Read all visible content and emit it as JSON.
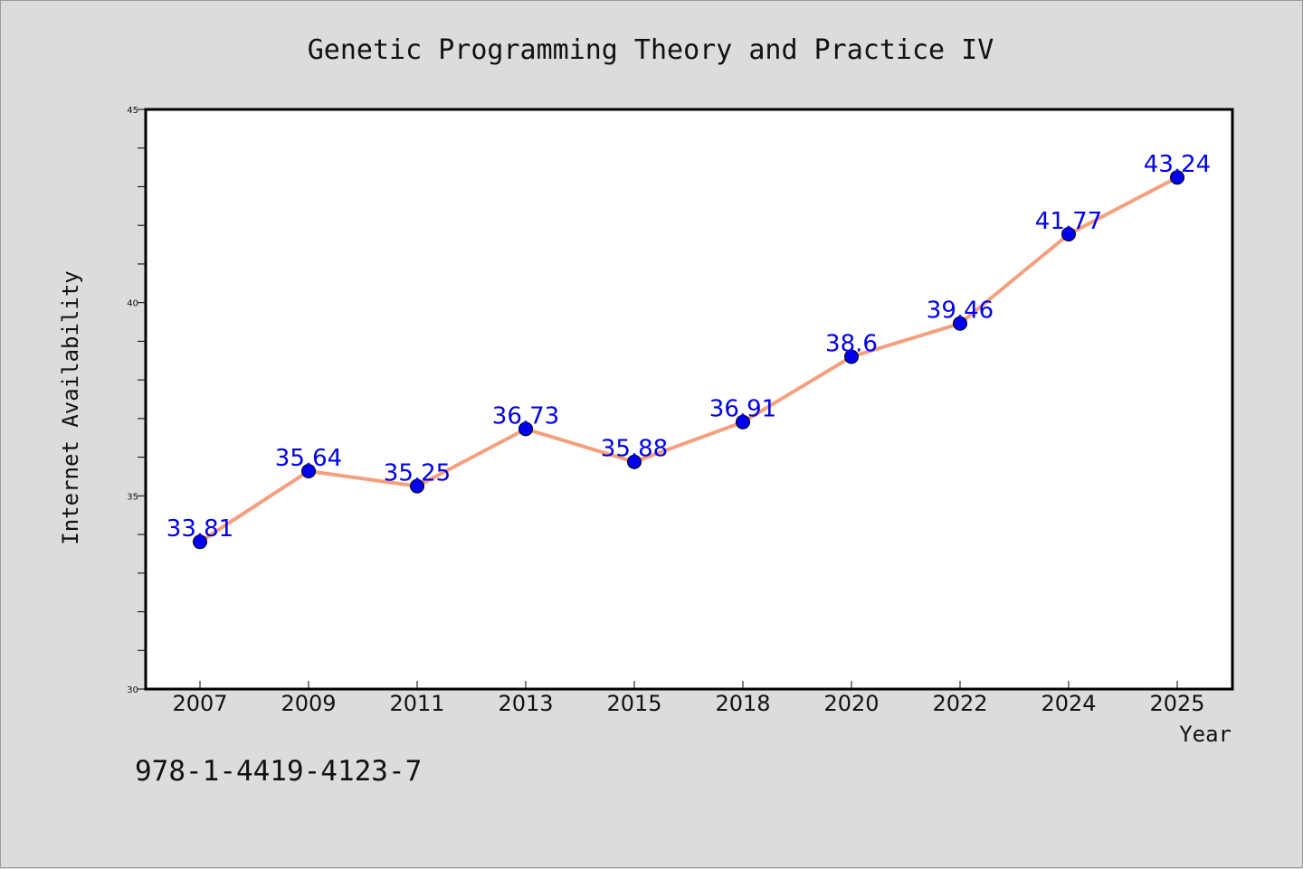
{
  "chart_data": {
    "type": "line",
    "title": "Genetic Programming Theory and Practice IV",
    "xlabel": "Year",
    "ylabel": "Internet Availability",
    "categories": [
      "2007",
      "2009",
      "2011",
      "2013",
      "2015",
      "2018",
      "2020",
      "2022",
      "2024",
      "2025"
    ],
    "series": [
      {
        "values": [
          33.81,
          35.64,
          35.25,
          36.73,
          35.88,
          36.91,
          38.6,
          39.46,
          41.77,
          43.24
        ],
        "data_labels": [
          "33.81",
          "35.64",
          "35.25",
          "36.73",
          "35.88",
          "36.91",
          "38.6",
          "39.46",
          "41.77",
          "43.24"
        ]
      }
    ],
    "ylim": [
      30,
      45
    ],
    "yticks": [
      30,
      35,
      40,
      45
    ],
    "ytick_labels": [
      "30",
      "35",
      "40",
      "45"
    ],
    "grid": false,
    "line_color": "#f4a07e",
    "marker_color": "#0000ee",
    "label_color": "#0000ee"
  },
  "footer": {
    "isbn": "978-1-4419-4123-7"
  }
}
